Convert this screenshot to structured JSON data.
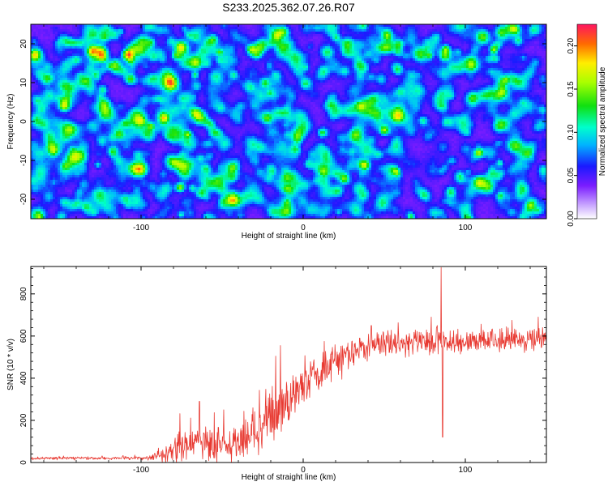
{
  "title": "S233.2025.362.07.26.R07",
  "colors": {
    "line": "#e83a32",
    "frame": "#000000",
    "background": "#ffffff"
  },
  "chart_data": [
    {
      "type": "heatmap",
      "name": "spectrogram",
      "xlabel": "Height of straight line (km)",
      "ylabel": "Frequency (Hz)",
      "xlim": [
        -168,
        150
      ],
      "ylim": [
        -25,
        25
      ],
      "xticks": [
        -100,
        0,
        100
      ],
      "xtick_labels": [
        "-100",
        "0",
        "100"
      ],
      "yticks": [
        -20,
        -10,
        0,
        10,
        20
      ],
      "ytick_labels": [
        "-20",
        "-10",
        "0",
        "10",
        "20"
      ],
      "colorbar": {
        "label": "Normalized spectral amplitude",
        "range": [
          0.0,
          0.225
        ],
        "ticks": [
          0.0,
          0.05,
          0.1,
          0.15,
          0.2
        ],
        "tick_labels": [
          "0.00",
          "0.05",
          "0.10",
          "0.15",
          "0.20"
        ]
      },
      "hotspots": [
        {
          "x": -10,
          "y": -23,
          "value": 0.21
        },
        {
          "x": 81,
          "y": -23.5,
          "value": 0.15
        },
        {
          "x": -123,
          "y": 2,
          "value": 0.08
        },
        {
          "x": 35,
          "y": 14,
          "value": 0.09
        }
      ]
    },
    {
      "type": "line",
      "name": "snr",
      "xlabel": "Height of straight line (km)",
      "ylabel": "SNR (10 * v/v)",
      "xlim": [
        -168,
        150
      ],
      "ylim": [
        0,
        930
      ],
      "xticks": [
        -100,
        0,
        100
      ],
      "xtick_labels": [
        "-100",
        "0",
        "100"
      ],
      "yticks": [
        0,
        200,
        400,
        600,
        800
      ],
      "ytick_labels": [
        "0",
        "200",
        "400",
        "600",
        "800"
      ],
      "trend": [
        [
          -168,
          20
        ],
        [
          -95,
          22
        ],
        [
          -85,
          40
        ],
        [
          -75,
          85
        ],
        [
          -60,
          85
        ],
        [
          -45,
          90
        ],
        [
          -30,
          150
        ],
        [
          -20,
          200
        ],
        [
          -10,
          280
        ],
        [
          0,
          350
        ],
        [
          10,
          430
        ],
        [
          20,
          480
        ],
        [
          30,
          530
        ],
        [
          45,
          560
        ],
        [
          60,
          570
        ],
        [
          80,
          575
        ],
        [
          100,
          575
        ],
        [
          150,
          580
        ]
      ],
      "noise": [
        [
          -168,
          5
        ],
        [
          -95,
          6
        ],
        [
          -88,
          20
        ],
        [
          -80,
          55
        ],
        [
          -60,
          60
        ],
        [
          -40,
          75
        ],
        [
          -24,
          95
        ],
        [
          -15,
          80
        ],
        [
          0,
          70
        ],
        [
          20,
          60
        ],
        [
          40,
          42
        ],
        [
          150,
          38
        ]
      ],
      "spikes": [
        {
          "x": -76,
          "y": 232
        },
        {
          "x": -64,
          "y": 290
        },
        {
          "x": -49,
          "y": 250
        },
        {
          "x": -31,
          "y": 260
        },
        {
          "x": -17,
          "y": 505
        },
        {
          "x": -14,
          "y": 555
        },
        {
          "x": 13,
          "y": 575
        },
        {
          "x": 42,
          "y": 650
        },
        {
          "x": 79,
          "y": 690
        },
        {
          "x": 85,
          "y": 925
        },
        {
          "x": 86,
          "y": 120
        },
        {
          "x": 145,
          "y": 690
        }
      ]
    }
  ]
}
